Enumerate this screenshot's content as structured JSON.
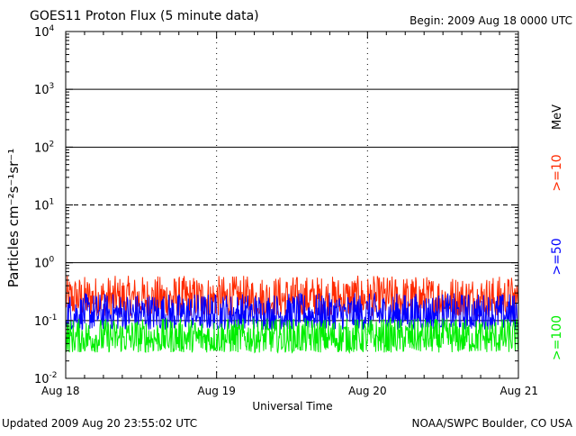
{
  "chart_data": {
    "type": "line",
    "title": "GOES11 Proton Flux (5 minute data)",
    "begin_label": "Begin: 2009 Aug 18 0000 UTC",
    "xlabel": "Universal Time",
    "ylabel": "Particles cm⁻²s⁻¹sr⁻¹",
    "yscale": "log",
    "ylim": [
      0.01,
      10000
    ],
    "y_ticks": [
      {
        "base": "10",
        "exp": "4"
      },
      {
        "base": "10",
        "exp": "3"
      },
      {
        "base": "10",
        "exp": "2"
      },
      {
        "base": "10",
        "exp": "1"
      },
      {
        "base": "10",
        "exp": "0"
      },
      {
        "base": "10",
        "exp": "-1"
      },
      {
        "base": "10",
        "exp": "-2"
      }
    ],
    "x_ticks": [
      "Aug 18",
      "Aug 19",
      "Aug 20",
      "Aug 21"
    ],
    "xlim_days": [
      0,
      3
    ],
    "unit_label": "MeV",
    "series": [
      {
        "name": ">=10",
        "color": "#ff2a00",
        "approx_min": 0.12,
        "approx_max": 0.6
      },
      {
        "name": ">=50",
        "color": "#0000ff",
        "approx_min": 0.07,
        "approx_max": 0.3
      },
      {
        "name": ">=100",
        "color": "#00ee00",
        "approx_min": 0.028,
        "approx_max": 0.11
      }
    ],
    "grid": "solid lines at 10^3, 10^2, 10^0, 10^-1; dashed at 10^1; dashed day dividers",
    "legend_placement": "right, vertical"
  },
  "footer": {
    "updated": "Updated 2009 Aug 20 23:55:02 UTC",
    "credit": "NOAA/SWPC Boulder, CO USA"
  }
}
